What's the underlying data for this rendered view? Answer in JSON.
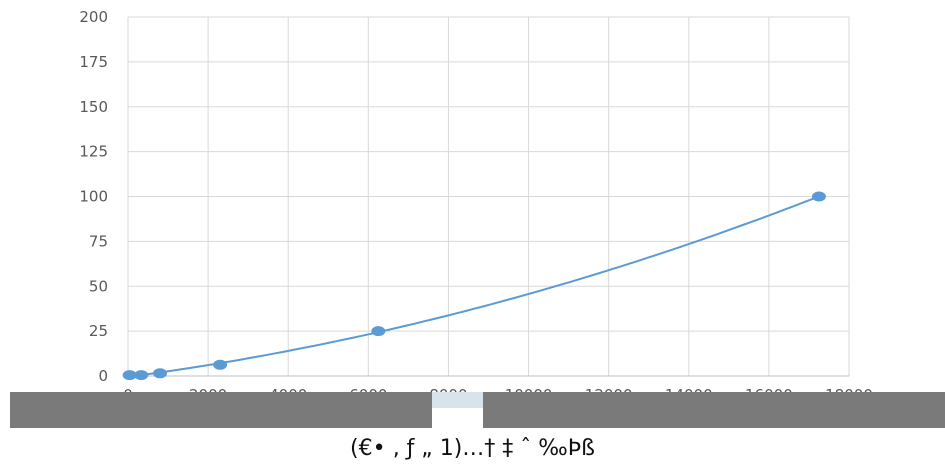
{
  "chart_data": {
    "type": "scatter",
    "title": "",
    "xlabel": "",
    "ylabel": "",
    "xlim": [
      0,
      18000
    ],
    "ylim": [
      0,
      200
    ],
    "x_ticks": [
      0,
      2000,
      4000,
      6000,
      8000,
      10000,
      12000,
      14000,
      16000,
      18000
    ],
    "y_ticks": [
      0,
      25,
      50,
      75,
      100,
      125,
      150,
      175,
      200
    ],
    "grid": true,
    "trendline": true,
    "colors": {
      "series": "#5b9bd5",
      "grid": "#d9d9d9",
      "overlay": "#7a7a7a"
    },
    "series": [
      {
        "x": [
          40,
          330,
          800,
          2300,
          6250,
          17250
        ],
        "y": [
          0.5,
          0.5,
          1.5,
          6.25,
          25,
          100
        ]
      }
    ]
  },
  "caption": "(€• ‚ ƒ „ 1)…† ‡ ˆ ‰Þß"
}
